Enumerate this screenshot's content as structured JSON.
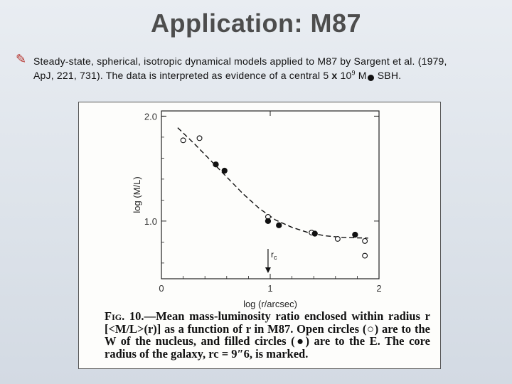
{
  "title": "Application: M87",
  "bullet": {
    "icon": "pen-bullet-icon",
    "line1": "Steady-state, spherical, isotropic dynamical models applied to M87 by Sargent et al. (1979,",
    "line2_pre": "ApJ, 221, 731). The data is interpreted as evidence of a central 5 ",
    "times": "x",
    "num": "10",
    "exp": "9",
    "unit": "M",
    "post": "SBH."
  },
  "chart_data": {
    "type": "scatter",
    "xlabel": "log (r/arcsec)",
    "ylabel": "log (M/L)",
    "xlim": [
      0,
      2
    ],
    "ylim": [
      0.45,
      2.05
    ],
    "x_ticks": [
      "0",
      "1",
      "2"
    ],
    "y_ticks": [
      "1.0",
      "2.0"
    ],
    "series": [
      {
        "marker": "open",
        "points": [
          [
            0.2,
            1.77
          ],
          [
            0.35,
            1.79
          ],
          [
            0.98,
            1.04
          ],
          [
            1.38,
            0.89
          ],
          [
            1.62,
            0.83
          ],
          [
            1.87,
            0.81
          ],
          [
            1.87,
            0.67
          ]
        ]
      },
      {
        "marker": "filled",
        "points": [
          [
            0.5,
            1.54
          ],
          [
            0.58,
            1.48
          ],
          [
            0.98,
            1.0
          ],
          [
            1.08,
            0.96
          ],
          [
            1.41,
            0.88
          ],
          [
            1.78,
            0.87
          ]
        ]
      }
    ],
    "model_curve": [
      [
        0.15,
        1.89
      ],
      [
        0.3,
        1.74
      ],
      [
        0.45,
        1.58
      ],
      [
        0.6,
        1.42
      ],
      [
        0.75,
        1.26
      ],
      [
        0.9,
        1.12
      ],
      [
        1.05,
        1.01
      ],
      [
        1.2,
        0.94
      ],
      [
        1.35,
        0.89
      ],
      [
        1.5,
        0.86
      ],
      [
        1.65,
        0.845
      ],
      [
        1.8,
        0.84
      ],
      [
        1.9,
        0.838
      ]
    ],
    "annotation": {
      "label": "r",
      "subscript": "c",
      "x": 0.98
    }
  },
  "caption": {
    "prefix": "Fig. 10.",
    "text": "—Mean mass-luminosity ratio enclosed within radius r [<M/L>(r)] as a function of r in M87. Open circles (○) are to the W of the nucleus, and filled circles (●) are to the E. The core radius of the galaxy, rc = 9″6, is marked."
  }
}
